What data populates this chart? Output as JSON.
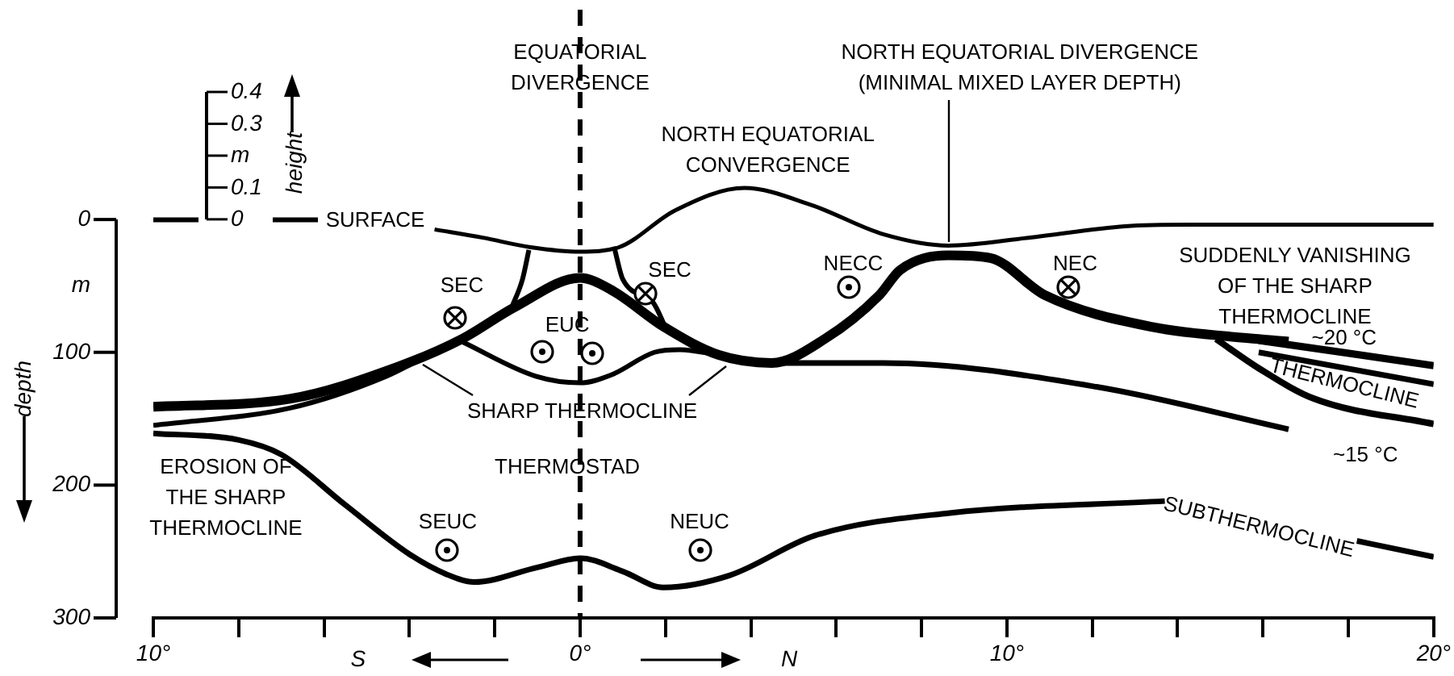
{
  "chart_data": {
    "type": "line",
    "ylabel": "depth",
    "y2label": "height",
    "xlim": [
      -10,
      20
    ],
    "xticks": [
      {
        "value": -10,
        "label": "10°"
      },
      {
        "value": -8,
        "label": null
      },
      {
        "value": -6,
        "label": null
      },
      {
        "value": -4,
        "label": null
      },
      {
        "value": -2,
        "label": null
      },
      {
        "value": 0,
        "label": "0°"
      },
      {
        "value": 2,
        "label": null
      },
      {
        "value": 4,
        "label": null
      },
      {
        "value": 6,
        "label": null
      },
      {
        "value": 8,
        "label": null
      },
      {
        "value": 10,
        "label": "10°"
      },
      {
        "value": 12,
        "label": null
      },
      {
        "value": 14,
        "label": null
      },
      {
        "value": 16,
        "label": null
      },
      {
        "value": 18,
        "label": null
      },
      {
        "value": 20,
        "label": "20°"
      }
    ],
    "ylim": [
      300,
      -158
    ],
    "yticks": [
      0,
      {
        "value": 50,
        "label": "m"
      },
      100,
      200,
      300
    ],
    "y2lim": [
      -1.25,
      0.66
    ],
    "y2ticks": [
      0,
      0.1,
      {
        "value": 0.2,
        "label": "m"
      },
      0.3,
      0.4
    ],
    "ref_lines": [
      {
        "axis": "x",
        "value": 0,
        "line_style": "dashed"
      }
    ],
    "series": [
      {
        "color": "#000000",
        "axis": "y2",
        "line_style": "dashed",
        "x": [
          -10,
          -6.05
        ],
        "values": [
          0,
          0
        ]
      },
      {
        "color": "#000000",
        "axis": "y2",
        "x": [
          -3.41,
          -2.28,
          -1.16,
          0,
          0.91,
          2.23,
          3.85,
          5.43,
          7.12,
          8.63,
          10.51,
          12.77,
          14.28,
          20
        ],
        "values": [
          -0.03,
          -0.056,
          -0.086,
          -0.1,
          -0.086,
          0.03,
          0.1,
          0.046,
          -0.046,
          -0.081,
          -0.056,
          -0.02,
          -0.015,
          -0.015
        ]
      },
      {
        "color": "#000000",
        "x": [
          -10,
          -6.8,
          -4.28,
          -2.77,
          -1.53,
          0,
          0.73,
          1.97,
          3.25,
          4.49,
          5.73,
          7.01,
          7.5,
          8.63,
          9.61,
          10.89,
          13.41,
          15.89,
          16.6
        ],
        "values": [
          141,
          135,
          111,
          90,
          66,
          44,
          53,
          81,
          102,
          108,
          90,
          57,
          38,
          27,
          29,
          57,
          81,
          90,
          92
        ]
      },
      {
        "color": "#000000",
        "x": [
          15.9,
          20
        ],
        "values": [
          91,
          110
        ]
      },
      {
        "color": "#000000",
        "x": [
          14.9,
          15.9,
          17.2,
          20
        ],
        "values": [
          90,
          112,
          135,
          154
        ]
      },
      {
        "color": "#000000",
        "x": [
          15.9,
          20
        ],
        "values": [
          100,
          124
        ]
      },
      {
        "color": "#000000",
        "x": [
          4.49,
          7.1,
          12.1,
          16.6
        ],
        "values": [
          108,
          108,
          126,
          158
        ]
      },
      {
        "color": "#000000",
        "x": [
          -2.77,
          -1.04,
          0,
          0.73,
          1.74,
          2.34,
          3.25
        ],
        "values": [
          92,
          118,
          123,
          117,
          100,
          98,
          102
        ]
      },
      {
        "color": "#000000",
        "x": [
          -10,
          -6.8,
          -4.54,
          -3.5
        ],
        "values": [
          155,
          142,
          118,
          101
        ]
      },
      {
        "color": "#000000",
        "x": [
          -1.6,
          -1.35,
          -1.2
        ],
        "values": [
          66,
          45,
          23
        ]
      },
      {
        "color": "#000000",
        "x": [
          0.8,
          1.0,
          1.7,
          2.0
        ],
        "values": [
          21,
          45,
          62,
          81
        ]
      },
      {
        "color": "#000000",
        "x": [
          -10,
          -8,
          -7,
          -5.5,
          -4,
          -3.14,
          -2.49,
          -1,
          0,
          1,
          1.95,
          3.5,
          5.5,
          8.66,
          13.7,
          15.9,
          18.2,
          20
        ],
        "values": [
          161,
          166,
          177,
          215,
          252,
          267,
          273,
          262,
          255,
          265,
          277,
          268,
          238,
          221,
          212,
          null,
          242,
          254
        ]
      }
    ],
    "annotations": [
      "EQUATORIAL\nDIVERGENCE",
      "NORTH EQUATORIAL\nCONVERGENCE",
      {
        "text": "NORTH EQUATORIAL DIVERGENCE\n(MINIMAL MIXED LAYER DEPTH)",
        "x": 8.63,
        "y": 19
      },
      "SURFACE",
      "SEC",
      "SEC",
      "EUC",
      "NECC",
      "NEC",
      "SUDDENLY VANISHING\nOF THE SHARP\nTHERMOCLINE",
      "~20 °C",
      "THERMOCLINE",
      "~15 °C",
      "SHARP THERMOCLINE",
      "THERMOSTAD",
      "EROSION OF\nTHE SHARP\nTHERMOCLINE",
      "SEUC",
      "NEUC",
      "SUBTHERMOCLINE",
      "S",
      "N"
    ]
  }
}
